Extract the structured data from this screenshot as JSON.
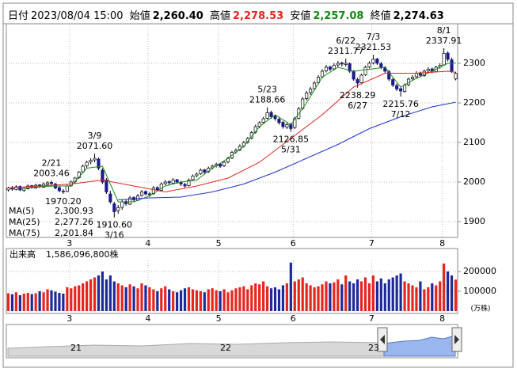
{
  "header": {
    "date_label": "日付",
    "date": "2023/08/04 15:00",
    "open_label": "始値",
    "open": "2,260.40",
    "high_label": "高値",
    "high": "2,278.53",
    "low_label": "安値",
    "low": "2,257.08",
    "close_label": "終値",
    "close": "2,274.63",
    "high_color": "#e0261e",
    "low_color": "#118811"
  },
  "chart_data": [
    {
      "type": "candlestick",
      "up_color": "#ffffff",
      "down_color": "#1a1a8c",
      "ylim": [
        1860,
        2400
      ],
      "yticks": [
        1900,
        2000,
        2100,
        2200,
        2300
      ],
      "grid": true,
      "xlim": [
        0,
        115
      ],
      "xticks": [
        {
          "value": 16,
          "label": "3"
        },
        {
          "value": 36,
          "label": "4"
        },
        {
          "value": 54,
          "label": "5"
        },
        {
          "value": 73,
          "label": "6"
        },
        {
          "value": 93,
          "label": "7"
        },
        {
          "value": 111,
          "label": "8"
        }
      ],
      "candles": [
        [
          1980,
          1988,
          1976,
          1985
        ],
        [
          1986,
          1990,
          1978,
          1982
        ],
        [
          1981,
          1992,
          1979,
          1988
        ],
        [
          1989,
          1991,
          1977,
          1980
        ],
        [
          1979,
          1987,
          1975,
          1984
        ],
        [
          1983,
          1994,
          1981,
          1990
        ],
        [
          1991,
          1993,
          1983,
          1986
        ],
        [
          1985,
          1996,
          1983,
          1992
        ],
        [
          1993,
          1995,
          1985,
          1988
        ],
        [
          1987,
          1999,
          1985,
          1995
        ],
        [
          1994,
          2002,
          1991,
          1998
        ],
        [
          1999,
          2003.46,
          1992,
          1996
        ],
        [
          1995,
          1998,
          1982,
          1985
        ],
        [
          1986,
          1990,
          1974,
          1978
        ],
        [
          1977,
          1982,
          1970.2,
          1975
        ],
        [
          1976,
          1993,
          1974,
          1990
        ],
        [
          1991,
          2004,
          1988,
          2000
        ],
        [
          2001,
          2013,
          1997,
          2010
        ],
        [
          2011,
          2028,
          2008,
          2025
        ],
        [
          2026,
          2044,
          2022,
          2040
        ],
        [
          2041,
          2054,
          2036,
          2050
        ],
        [
          2051,
          2060,
          2045,
          2055
        ],
        [
          2056,
          2071.6,
          2050,
          2060
        ],
        [
          2058,
          2062,
          2030,
          2035
        ],
        [
          2030,
          2035,
          1995,
          2000
        ],
        [
          2005,
          2010,
          1970,
          1975
        ],
        [
          1970,
          1978,
          1945,
          1950
        ],
        [
          1945,
          1950,
          1910.6,
          1925
        ],
        [
          1928,
          1942,
          1920,
          1935
        ],
        [
          1936,
          1955,
          1930,
          1950
        ],
        [
          1951,
          1956,
          1940,
          1945
        ],
        [
          1944,
          1965,
          1942,
          1960
        ],
        [
          1961,
          1964,
          1950,
          1955
        ],
        [
          1954,
          1970,
          1952,
          1965
        ],
        [
          1966,
          1980,
          1963,
          1975
        ],
        [
          1976,
          1979,
          1966,
          1970
        ],
        [
          1969,
          1975,
          1963,
          1970
        ],
        [
          1971,
          1990,
          1968,
          1985
        ],
        [
          1986,
          1989,
          1976,
          1980
        ],
        [
          1979,
          1999,
          1977,
          1995
        ],
        [
          1996,
          2005,
          1992,
          2000
        ],
        [
          2001,
          2004,
          1993,
          1998
        ],
        [
          1997,
          2010,
          1995,
          2005
        ],
        [
          2006,
          2008,
          1996,
          2000
        ],
        [
          1999,
          2003,
          1990,
          1995
        ],
        [
          1994,
          1998,
          1986,
          1990
        ],
        [
          1991,
          2009,
          1989,
          2005
        ],
        [
          2006,
          2019,
          2003,
          2015
        ],
        [
          2016,
          2024,
          2012,
          2020
        ],
        [
          2021,
          2034,
          2018,
          2030
        ],
        [
          2031,
          2033,
          2020,
          2025
        ],
        [
          2026,
          2039,
          2023,
          2035
        ],
        [
          2036,
          2044,
          2032,
          2040
        ],
        [
          2041,
          2049,
          2037,
          2045
        ],
        [
          2046,
          2048,
          2036,
          2040
        ],
        [
          2041,
          2054,
          2038,
          2050
        ],
        [
          2051,
          2064,
          2047,
          2060
        ],
        [
          2061,
          2079,
          2058,
          2075
        ],
        [
          2076,
          2085,
          2072,
          2080
        ],
        [
          2081,
          2095,
          2078,
          2090
        ],
        [
          2091,
          2104,
          2087,
          2100
        ],
        [
          2101,
          2114,
          2097,
          2110
        ],
        [
          2111,
          2129,
          2108,
          2125
        ],
        [
          2126,
          2145,
          2122,
          2140
        ],
        [
          2141,
          2154,
          2136,
          2150
        ],
        [
          2151,
          2165,
          2147,
          2160
        ],
        [
          2161,
          2188.66,
          2158,
          2175
        ],
        [
          2176,
          2180,
          2160,
          2165
        ],
        [
          2166,
          2170,
          2155,
          2160
        ],
        [
          2159,
          2163,
          2145,
          2150
        ],
        [
          2151,
          2155,
          2135,
          2140
        ],
        [
          2139,
          2150,
          2134,
          2145
        ],
        [
          2146,
          2149,
          2126.85,
          2135
        ],
        [
          2138,
          2165,
          2134,
          2160
        ],
        [
          2161,
          2190,
          2158,
          2185
        ],
        [
          2186,
          2215,
          2183,
          2210
        ],
        [
          2211,
          2230,
          2206,
          2225
        ],
        [
          2226,
          2240,
          2220,
          2235
        ],
        [
          2236,
          2255,
          2232,
          2250
        ],
        [
          2251,
          2270,
          2247,
          2265
        ],
        [
          2266,
          2285,
          2262,
          2280
        ],
        [
          2281,
          2296,
          2277,
          2290
        ],
        [
          2291,
          2294,
          2280,
          2285
        ],
        [
          2286,
          2300,
          2282,
          2295
        ],
        [
          2296,
          2306,
          2291,
          2300
        ],
        [
          2301,
          2304,
          2292,
          2298
        ],
        [
          2297,
          2311.77,
          2292,
          2300
        ],
        [
          2299,
          2302,
          2276,
          2280
        ],
        [
          2279,
          2283,
          2256,
          2260
        ],
        [
          2259,
          2264,
          2238.29,
          2250
        ],
        [
          2251,
          2274,
          2247,
          2270
        ],
        [
          2271,
          2294,
          2268,
          2290
        ],
        [
          2291,
          2305,
          2287,
          2300
        ],
        [
          2301,
          2321.53,
          2297,
          2310
        ],
        [
          2311,
          2314,
          2296,
          2300
        ],
        [
          2299,
          2304,
          2285,
          2290
        ],
        [
          2289,
          2293,
          2275,
          2280
        ],
        [
          2279,
          2283,
          2255,
          2260
        ],
        [
          2259,
          2263,
          2240,
          2245
        ],
        [
          2244,
          2249,
          2230,
          2235
        ],
        [
          2236,
          2240,
          2215.76,
          2230
        ],
        [
          2229,
          2249,
          2226,
          2245
        ],
        [
          2246,
          2264,
          2242,
          2260
        ],
        [
          2261,
          2270,
          2256,
          2265
        ],
        [
          2266,
          2280,
          2262,
          2275
        ],
        [
          2276,
          2279,
          2265,
          2270
        ],
        [
          2269,
          2284,
          2266,
          2280
        ],
        [
          2281,
          2290,
          2277,
          2285
        ],
        [
          2286,
          2289,
          2275,
          2280
        ],
        [
          2279,
          2294,
          2277,
          2290
        ],
        [
          2291,
          2300,
          2287,
          2295
        ],
        [
          2296,
          2337.91,
          2294,
          2325
        ],
        [
          2326,
          2330,
          2305,
          2310
        ],
        [
          2309,
          2314,
          2276,
          2280
        ],
        [
          2260.4,
          2278.53,
          2257.08,
          2274.63
        ]
      ],
      "series": [
        {
          "name": "MA(5)",
          "color": "#1a8a1a",
          "x": [
            4,
            8,
            12,
            16,
            20,
            24,
            28,
            32,
            36,
            40,
            44,
            48,
            52,
            56,
            60,
            64,
            68,
            72,
            76,
            80,
            84,
            88,
            92,
            96,
            100,
            104,
            108,
            112,
            114
          ],
          "values": [
            1984,
            1988,
            1990,
            1990,
            2035,
            2040,
            1950,
            1950,
            1965,
            1990,
            2000,
            2005,
            2035,
            2060,
            2090,
            2140,
            2170,
            2145,
            2200,
            2265,
            2290,
            2280,
            2285,
            2290,
            2240,
            2262,
            2280,
            2300,
            2300.93
          ],
          "value_labels": [
            null,
            null,
            null,
            null,
            null,
            null,
            null,
            null,
            null,
            null,
            null,
            null,
            null,
            null,
            null,
            null,
            null,
            null,
            null,
            null,
            null,
            null,
            null,
            null,
            null,
            null,
            null,
            null,
            "2,300.93"
          ]
        },
        {
          "name": "MA(25)",
          "color": "#e0261e",
          "x": [
            0,
            8,
            16,
            24,
            32,
            40,
            48,
            56,
            64,
            72,
            80,
            88,
            96,
            104,
            112,
            114
          ],
          "values": [
            1985,
            1990,
            1995,
            2005,
            1990,
            1975,
            1990,
            2010,
            2050,
            2110,
            2170,
            2240,
            2275,
            2275,
            2280,
            2277.26
          ],
          "value_labels": [
            null,
            null,
            null,
            null,
            null,
            null,
            null,
            null,
            null,
            null,
            null,
            null,
            null,
            null,
            null,
            "2,277.26"
          ]
        },
        {
          "name": "MA(75)",
          "color": "#2233cc",
          "x": [
            28,
            36,
            44,
            52,
            60,
            68,
            76,
            84,
            92,
            100,
            108,
            114
          ],
          "values": [
            1955,
            1960,
            1962,
            1975,
            1995,
            2025,
            2060,
            2095,
            2135,
            2165,
            2190,
            2201.84
          ],
          "value_labels": [
            null,
            null,
            null,
            null,
            null,
            null,
            null,
            null,
            null,
            null,
            null,
            "2,201.84"
          ]
        }
      ],
      "annotations": [
        {
          "x": 11,
          "y": 2003.46,
          "label": "2003.46",
          "date": "2/21",
          "kind": "high"
        },
        {
          "x": 14,
          "y": 1970.2,
          "label": "1970.20",
          "kind": "low"
        },
        {
          "x": 22,
          "y": 2071.6,
          "label": "2071.60",
          "date": "3/9",
          "kind": "high"
        },
        {
          "x": 27,
          "y": 1910.6,
          "label": "1910.60",
          "date": "3/16",
          "kind": "low"
        },
        {
          "x": 66,
          "y": 2188.66,
          "label": "2188.66",
          "date": "5/23",
          "kind": "high"
        },
        {
          "x": 72,
          "y": 2126.85,
          "label": "2126.85",
          "date": "5/31",
          "kind": "low"
        },
        {
          "x": 86,
          "y": 2311.77,
          "label": "2311.77",
          "date": "6/22",
          "kind": "high"
        },
        {
          "x": 89,
          "y": 2238.29,
          "label": "2238.29",
          "date": "6/27",
          "kind": "low"
        },
        {
          "x": 93,
          "y": 2321.53,
          "label": "2321.53",
          "date": "7/3",
          "kind": "high"
        },
        {
          "x": 100,
          "y": 2215.76,
          "label": "2215.76",
          "date": "7/12",
          "kind": "low"
        },
        {
          "x": 111,
          "y": 2337.91,
          "label": "2337.91",
          "date": "8/1",
          "kind": "high"
        }
      ]
    },
    {
      "type": "bar",
      "title": "出来高",
      "total": "1,586,096,800株",
      "unit": "(万株)",
      "up_color": "#e8261e",
      "down_color": "#1d2a9a",
      "ylim": [
        0,
        252000
      ],
      "yticks": [
        100000,
        200000
      ],
      "grid": true,
      "values": [
        90000,
        85000,
        95000,
        80000,
        88000,
        92000,
        86000,
        90000,
        100000,
        95000,
        110000,
        105000,
        98000,
        92000,
        88000,
        120000,
        115000,
        125000,
        130000,
        140000,
        150000,
        160000,
        170000,
        180000,
        200000,
        160000,
        180000,
        150000,
        140000,
        130000,
        120000,
        135000,
        125000,
        115000,
        140000,
        130000,
        120000,
        110000,
        100000,
        115000,
        125000,
        110000,
        100000,
        95000,
        105000,
        115000,
        120000,
        110000,
        105000,
        100000,
        95000,
        110000,
        115000,
        105000,
        100000,
        110000,
        95000,
        105000,
        115000,
        120000,
        125000,
        110000,
        130000,
        140000,
        135000,
        150000,
        125000,
        115000,
        120000,
        110000,
        130000,
        140000,
        245000,
        150000,
        160000,
        170000,
        140000,
        130000,
        120000,
        125000,
        135000,
        150000,
        140000,
        145000,
        160000,
        135000,
        180000,
        150000,
        140000,
        160000,
        150000,
        170000,
        140000,
        180000,
        150000,
        165000,
        140000,
        160000,
        170000,
        180000,
        190000,
        150000,
        140000,
        130000,
        120000,
        150000,
        110000,
        120000,
        140000,
        130000,
        150000,
        240000,
        200000,
        180000,
        158610
      ]
    }
  ],
  "navigator": {
    "labels": [
      "21",
      "22",
      "23"
    ]
  }
}
